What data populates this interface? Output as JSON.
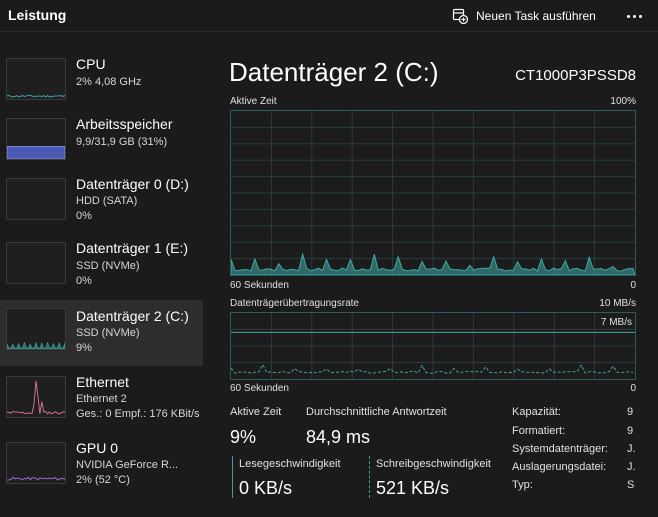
{
  "header": {
    "title": "Leistung",
    "run_task_label": "Neuen Task ausführen",
    "run_task_icon": "new-task-icon",
    "more_icon": "more-options-icon"
  },
  "sidebar": {
    "items": [
      {
        "title": "CPU",
        "lines": [
          "2%  4,08 GHz"
        ],
        "color": "#3fa9a6",
        "usage": 0.02
      },
      {
        "title": "Arbeitsspeicher",
        "lines": [
          "9,9/31,9 GB (31%)"
        ],
        "color": "#5b6ee1",
        "usage": 0.31
      },
      {
        "title": "Datenträger 0 (D:)",
        "lines": [
          "HDD (SATA)",
          "0%"
        ],
        "color": "#3fa9a6",
        "usage": 0
      },
      {
        "title": "Datenträger 1 (E:)",
        "lines": [
          "SSD (NVMe)",
          "0%"
        ],
        "color": "#3fa9a6",
        "usage": 0
      },
      {
        "title": "Datenträger 2 (C:)",
        "lines": [
          "SSD (NVMe)",
          "9%"
        ],
        "color": "#3fa9a6",
        "usage": 0.09,
        "selected": true
      },
      {
        "title": "Ethernet",
        "lines": [
          "Ethernet 2",
          "Ges.: 0 Empf.: 176 KBit/s"
        ],
        "color": "#d6719b"
      },
      {
        "title": "GPU 0",
        "lines": [
          "NVIDIA GeForce R...",
          "2% (52 °C)"
        ],
        "color": "#9a6fd6",
        "usage": 0.02
      }
    ]
  },
  "main": {
    "title": "Datenträger 2 (C:)",
    "model": "CT1000P3PSSD8",
    "chart1": {
      "label": "Aktive Zeit",
      "max_label": "100%",
      "xlabel": "60 Sekunden",
      "min_label": "0"
    },
    "chart2": {
      "label": "Datenträgerübertragungsrate",
      "max_label": "10 MB/s",
      "line_label": "7 MB/s",
      "xlabel": "60 Sekunden",
      "min_label": "0"
    },
    "accent": "#3fa9a6",
    "stats": {
      "active_label": "Aktive Zeit",
      "active_value": "9%",
      "response_label": "Durchschnittliche Antwortzeit",
      "response_value": "84,9 ms",
      "read_label": "Lesegeschwindigkeit",
      "read_value": "0 KB/s",
      "write_label": "Schreibgeschwindigkeit",
      "write_value": "521 KB/s"
    },
    "properties": [
      {
        "label": "Kapazität:",
        "value": "9"
      },
      {
        "label": "Formatiert:",
        "value": "9"
      },
      {
        "label": "Systemdatenträger:",
        "value": "J."
      },
      {
        "label": "Auslagerungsdatei:",
        "value": "J."
      },
      {
        "label": "Typ:",
        "value": "S"
      }
    ]
  }
}
